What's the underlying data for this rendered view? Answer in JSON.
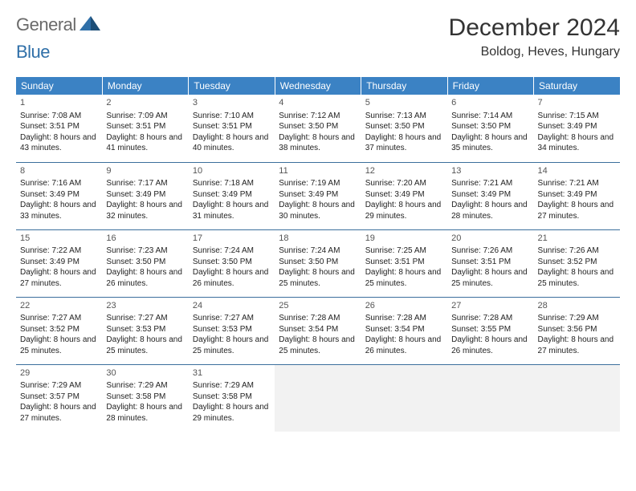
{
  "logo": {
    "part1": "General",
    "part2": "Blue"
  },
  "title": "December 2024",
  "location": "Boldog, Heves, Hungary",
  "header_bg": "#3b82c4",
  "header_fg": "#ffffff",
  "rule_color": "#3b6f9c",
  "empty_bg": "#f2f2f2",
  "weekdays": [
    "Sunday",
    "Monday",
    "Tuesday",
    "Wednesday",
    "Thursday",
    "Friday",
    "Saturday"
  ],
  "days": [
    {
      "n": "1",
      "sunrise": "7:08 AM",
      "sunset": "3:51 PM",
      "daylight": "8 hours and 43 minutes."
    },
    {
      "n": "2",
      "sunrise": "7:09 AM",
      "sunset": "3:51 PM",
      "daylight": "8 hours and 41 minutes."
    },
    {
      "n": "3",
      "sunrise": "7:10 AM",
      "sunset": "3:51 PM",
      "daylight": "8 hours and 40 minutes."
    },
    {
      "n": "4",
      "sunrise": "7:12 AM",
      "sunset": "3:50 PM",
      "daylight": "8 hours and 38 minutes."
    },
    {
      "n": "5",
      "sunrise": "7:13 AM",
      "sunset": "3:50 PM",
      "daylight": "8 hours and 37 minutes."
    },
    {
      "n": "6",
      "sunrise": "7:14 AM",
      "sunset": "3:50 PM",
      "daylight": "8 hours and 35 minutes."
    },
    {
      "n": "7",
      "sunrise": "7:15 AM",
      "sunset": "3:49 PM",
      "daylight": "8 hours and 34 minutes."
    },
    {
      "n": "8",
      "sunrise": "7:16 AM",
      "sunset": "3:49 PM",
      "daylight": "8 hours and 33 minutes."
    },
    {
      "n": "9",
      "sunrise": "7:17 AM",
      "sunset": "3:49 PM",
      "daylight": "8 hours and 32 minutes."
    },
    {
      "n": "10",
      "sunrise": "7:18 AM",
      "sunset": "3:49 PM",
      "daylight": "8 hours and 31 minutes."
    },
    {
      "n": "11",
      "sunrise": "7:19 AM",
      "sunset": "3:49 PM",
      "daylight": "8 hours and 30 minutes."
    },
    {
      "n": "12",
      "sunrise": "7:20 AM",
      "sunset": "3:49 PM",
      "daylight": "8 hours and 29 minutes."
    },
    {
      "n": "13",
      "sunrise": "7:21 AM",
      "sunset": "3:49 PM",
      "daylight": "8 hours and 28 minutes."
    },
    {
      "n": "14",
      "sunrise": "7:21 AM",
      "sunset": "3:49 PM",
      "daylight": "8 hours and 27 minutes."
    },
    {
      "n": "15",
      "sunrise": "7:22 AM",
      "sunset": "3:49 PM",
      "daylight": "8 hours and 27 minutes."
    },
    {
      "n": "16",
      "sunrise": "7:23 AM",
      "sunset": "3:50 PM",
      "daylight": "8 hours and 26 minutes."
    },
    {
      "n": "17",
      "sunrise": "7:24 AM",
      "sunset": "3:50 PM",
      "daylight": "8 hours and 26 minutes."
    },
    {
      "n": "18",
      "sunrise": "7:24 AM",
      "sunset": "3:50 PM",
      "daylight": "8 hours and 25 minutes."
    },
    {
      "n": "19",
      "sunrise": "7:25 AM",
      "sunset": "3:51 PM",
      "daylight": "8 hours and 25 minutes."
    },
    {
      "n": "20",
      "sunrise": "7:26 AM",
      "sunset": "3:51 PM",
      "daylight": "8 hours and 25 minutes."
    },
    {
      "n": "21",
      "sunrise": "7:26 AM",
      "sunset": "3:52 PM",
      "daylight": "8 hours and 25 minutes."
    },
    {
      "n": "22",
      "sunrise": "7:27 AM",
      "sunset": "3:52 PM",
      "daylight": "8 hours and 25 minutes."
    },
    {
      "n": "23",
      "sunrise": "7:27 AM",
      "sunset": "3:53 PM",
      "daylight": "8 hours and 25 minutes."
    },
    {
      "n": "24",
      "sunrise": "7:27 AM",
      "sunset": "3:53 PM",
      "daylight": "8 hours and 25 minutes."
    },
    {
      "n": "25",
      "sunrise": "7:28 AM",
      "sunset": "3:54 PM",
      "daylight": "8 hours and 25 minutes."
    },
    {
      "n": "26",
      "sunrise": "7:28 AM",
      "sunset": "3:54 PM",
      "daylight": "8 hours and 26 minutes."
    },
    {
      "n": "27",
      "sunrise": "7:28 AM",
      "sunset": "3:55 PM",
      "daylight": "8 hours and 26 minutes."
    },
    {
      "n": "28",
      "sunrise": "7:29 AM",
      "sunset": "3:56 PM",
      "daylight": "8 hours and 27 minutes."
    },
    {
      "n": "29",
      "sunrise": "7:29 AM",
      "sunset": "3:57 PM",
      "daylight": "8 hours and 27 minutes."
    },
    {
      "n": "30",
      "sunrise": "7:29 AM",
      "sunset": "3:58 PM",
      "daylight": "8 hours and 28 minutes."
    },
    {
      "n": "31",
      "sunrise": "7:29 AM",
      "sunset": "3:58 PM",
      "daylight": "8 hours and 29 minutes."
    }
  ],
  "labels": {
    "sunrise": "Sunrise:",
    "sunset": "Sunset:",
    "daylight": "Daylight:"
  },
  "start_weekday": 0,
  "trailing_empty": 4
}
